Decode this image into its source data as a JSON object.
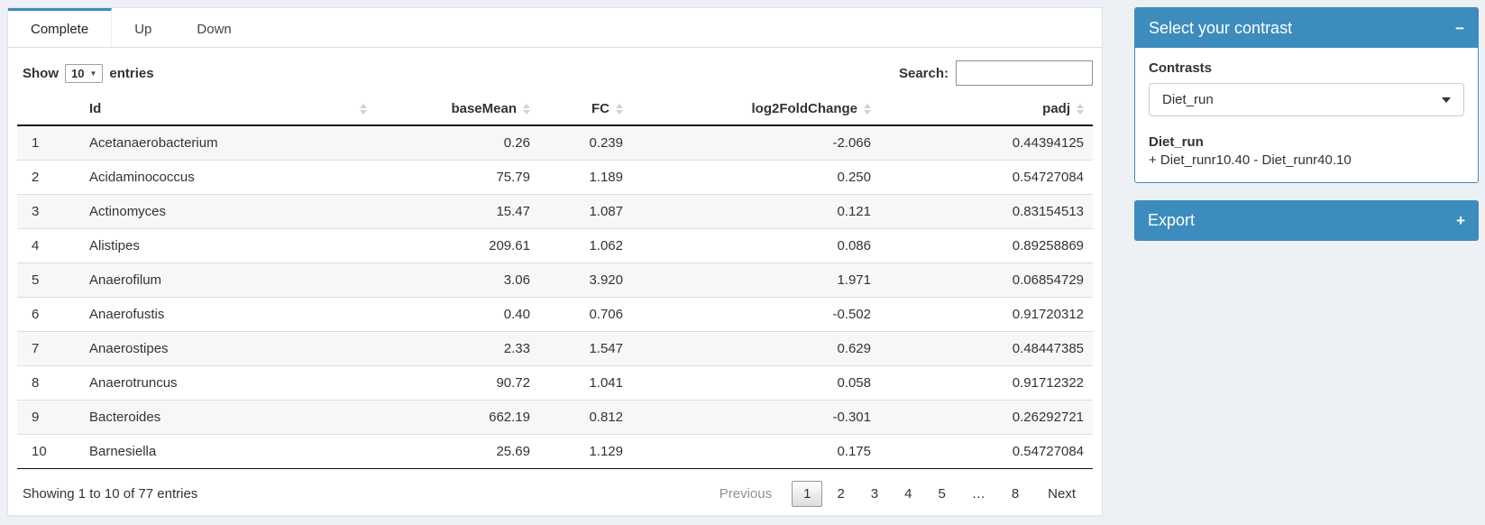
{
  "colors": {
    "primary": "#3d8cbe",
    "page_bg": "#edf1f5",
    "stripe": "#f7f7f7"
  },
  "icons": {
    "collapse_minus": "−",
    "collapse_plus": "+",
    "select_caret": "down-triangle",
    "sort": "up-down-triangles"
  },
  "tabs": [
    {
      "label": "Complete",
      "active": true
    },
    {
      "label": "Up",
      "active": false
    },
    {
      "label": "Down",
      "active": false
    }
  ],
  "length_control": {
    "prefix": "Show",
    "selected": "10",
    "suffix": "entries"
  },
  "search": {
    "label": "Search:",
    "value": ""
  },
  "table": {
    "columns": [
      {
        "label": ""
      },
      {
        "label": "Id"
      },
      {
        "label": "baseMean"
      },
      {
        "label": "FC"
      },
      {
        "label": "log2FoldChange"
      },
      {
        "label": "padj"
      }
    ],
    "rows": [
      {
        "index": "1",
        "id": "Acetanaerobacterium",
        "base_mean": "0.26",
        "fc": "0.239",
        "log2fc": "-2.066",
        "padj": "0.44394125"
      },
      {
        "index": "2",
        "id": "Acidaminococcus",
        "base_mean": "75.79",
        "fc": "1.189",
        "log2fc": "0.250",
        "padj": "0.54727084"
      },
      {
        "index": "3",
        "id": "Actinomyces",
        "base_mean": "15.47",
        "fc": "1.087",
        "log2fc": "0.121",
        "padj": "0.83154513"
      },
      {
        "index": "4",
        "id": "Alistipes",
        "base_mean": "209.61",
        "fc": "1.062",
        "log2fc": "0.086",
        "padj": "0.89258869"
      },
      {
        "index": "5",
        "id": "Anaerofilum",
        "base_mean": "3.06",
        "fc": "3.920",
        "log2fc": "1.971",
        "padj": "0.06854729"
      },
      {
        "index": "6",
        "id": "Anaerofustis",
        "base_mean": "0.40",
        "fc": "0.706",
        "log2fc": "-0.502",
        "padj": "0.91720312"
      },
      {
        "index": "7",
        "id": "Anaerostipes",
        "base_mean": "2.33",
        "fc": "1.547",
        "log2fc": "0.629",
        "padj": "0.48447385"
      },
      {
        "index": "8",
        "id": "Anaerotruncus",
        "base_mean": "90.72",
        "fc": "1.041",
        "log2fc": "0.058",
        "padj": "0.91712322"
      },
      {
        "index": "9",
        "id": "Bacteroides",
        "base_mean": "662.19",
        "fc": "0.812",
        "log2fc": "-0.301",
        "padj": "0.26292721"
      },
      {
        "index": "10",
        "id": "Barnesiella",
        "base_mean": "25.69",
        "fc": "1.129",
        "log2fc": "0.175",
        "padj": "0.54727084"
      }
    ]
  },
  "footer": {
    "info": "Showing 1 to 10 of 77 entries",
    "pagination": {
      "previous": "Previous",
      "pages": [
        "1",
        "2",
        "3",
        "4",
        "5",
        "…",
        "8"
      ],
      "current": "1",
      "next": "Next"
    }
  },
  "contrast_box": {
    "title": "Select your contrast",
    "label": "Contrasts",
    "select_value": "Diet_run",
    "detail_title": "Diet_run",
    "detail_text": "+ Diet_runr10.40 - Diet_runr40.10"
  },
  "export_box": {
    "title": "Export"
  }
}
